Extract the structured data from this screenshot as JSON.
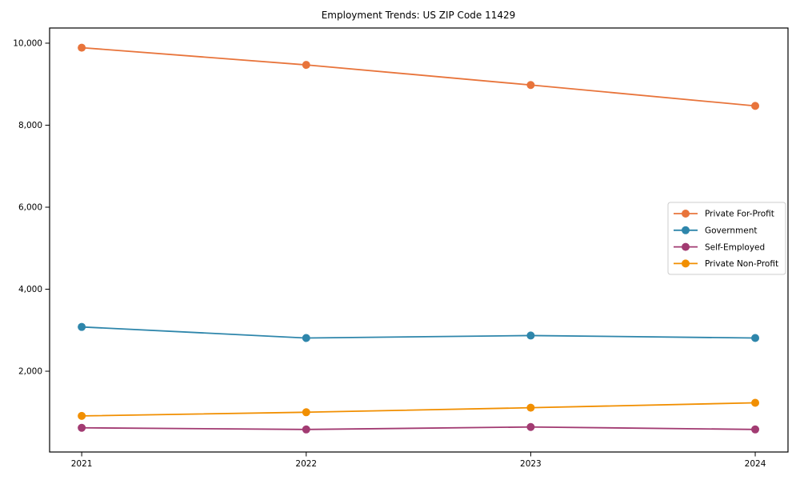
{
  "figure": {
    "background_color": "#ffffff",
    "axis_color": "#000000"
  },
  "chart_data": {
    "type": "line",
    "title": "Employment Trends: US ZIP Code 11429",
    "x": [
      2021,
      2022,
      2023,
      2024
    ],
    "xtick_labels": [
      "2021",
      "2022",
      "2023",
      "2024"
    ],
    "yticks": [
      2000,
      4000,
      6000,
      8000,
      10000
    ],
    "ytick_labels": [
      "2,000",
      "4,000",
      "6,000",
      "8,000",
      "10,000"
    ],
    "ylim": [
      30,
      10370
    ],
    "xlim_years": [
      2020.857,
      2024.146
    ],
    "grid": false,
    "legend_position": "center-right",
    "marker": "circle",
    "series": [
      {
        "name": "Private For-Profit",
        "color": "#E8743B",
        "values": [
          9890,
          9470,
          8980,
          8470
        ]
      },
      {
        "name": "Government",
        "color": "#2E86AB",
        "values": [
          3080,
          2810,
          2870,
          2810
        ]
      },
      {
        "name": "Self-Employed",
        "color": "#A23B72",
        "values": [
          620,
          580,
          640,
          580
        ]
      },
      {
        "name": "Private Non-Profit",
        "color": "#F18F01",
        "values": [
          910,
          1000,
          1110,
          1230
        ]
      }
    ]
  }
}
